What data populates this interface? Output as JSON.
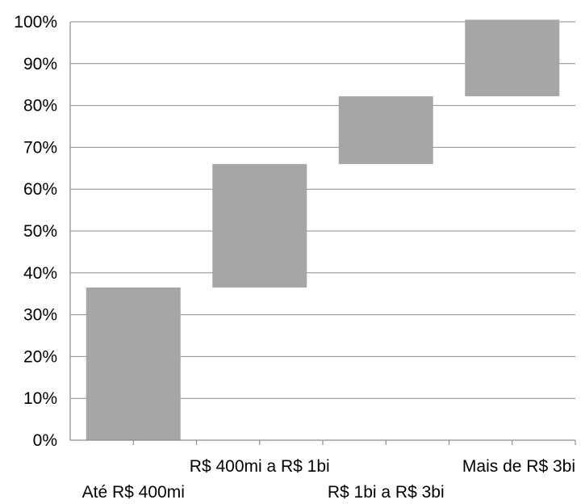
{
  "chart_data": {
    "type": "bar",
    "subtype": "waterfall",
    "categories": [
      "Até R$ 400mi",
      "R$ 400mi a R$ 1bi",
      "R$ 1bi a R$ 3bi",
      "Mais de R$ 3bi"
    ],
    "segments": [
      {
        "category": "Até R$ 400mi",
        "base": 0,
        "top": 36.5
      },
      {
        "category": "R$ 400mi a R$ 1bi",
        "base": 36.5,
        "top": 66
      },
      {
        "category": "R$ 1bi a R$ 3bi",
        "base": 66,
        "top": 82.2
      },
      {
        "category": "Mais de R$ 3bi",
        "base": 82.2,
        "top": 100.5
      }
    ],
    "values": [
      36.5,
      29.5,
      16.2,
      18.3
    ],
    "ylim": [
      0,
      100
    ],
    "yticks": [
      "0%",
      "10%",
      "20%",
      "30%",
      "40%",
      "50%",
      "60%",
      "70%",
      "80%",
      "90%",
      "100%"
    ],
    "grid": true,
    "legend": "none",
    "bar_color": "#a6a6a6",
    "title": "",
    "xlabel": "",
    "ylabel": ""
  }
}
